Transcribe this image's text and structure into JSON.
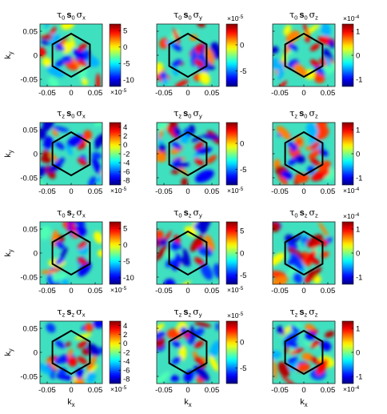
{
  "figure": {
    "rows": 4,
    "cols": 3,
    "xlabel": "k",
    "xlabel_sub": "x",
    "ylabel": "k",
    "ylabel_sub": "y"
  },
  "chart_data": [
    {
      "type": "heatmap",
      "title_parts": [
        "τ",
        "0",
        "s",
        "0",
        "σ",
        "x"
      ],
      "xticks": [
        "-0.05",
        "0",
        "0.05"
      ],
      "yticks": [
        "0.05",
        "0",
        "-0.05"
      ],
      "xlim": [
        -0.065,
        0.065
      ],
      "ylim": [
        -0.065,
        0.065
      ],
      "colorbar": {
        "ticks": [
          5,
          0,
          -5,
          -10
        ],
        "range": [
          -12,
          7
        ],
        "exponent": "×10",
        "exp_power": "-5",
        "exp_position": "bottom"
      },
      "colormap": "jet",
      "hexagon": true
    },
    {
      "type": "heatmap",
      "title_parts": [
        "τ",
        "0",
        "s",
        "0",
        "σ",
        "y"
      ],
      "xticks": [
        "-0.05",
        "0",
        "0.05"
      ],
      "yticks": [
        "0.05",
        "0",
        "-0.05"
      ],
      "xlim": [
        -0.065,
        0.065
      ],
      "ylim": [
        -0.065,
        0.065
      ],
      "colorbar": {
        "ticks": [
          0,
          -5
        ],
        "range": [
          -8,
          4
        ],
        "exponent": "×10",
        "exp_power": "-5",
        "exp_position": "top"
      },
      "colormap": "jet",
      "hexagon": true
    },
    {
      "type": "heatmap",
      "title_parts": [
        "τ",
        "0",
        "s",
        "0",
        "σ",
        "z"
      ],
      "xticks": [
        "-0.05",
        "0",
        "0.05"
      ],
      "yticks": [
        "0.05",
        "0",
        "-0.05"
      ],
      "xlim": [
        -0.065,
        0.065
      ],
      "ylim": [
        -0.065,
        0.065
      ],
      "colorbar": {
        "ticks": [
          1,
          0,
          -1
        ],
        "range": [
          -1.3,
          1.3
        ],
        "exponent": "×10",
        "exp_power": "-4",
        "exp_position": "top"
      },
      "colormap": "jet",
      "hexagon": true
    },
    {
      "type": "heatmap",
      "title_parts": [
        "τ",
        "z",
        "s",
        "0",
        "σ",
        "x"
      ],
      "xticks": [
        "-0.05",
        "0",
        "0.05"
      ],
      "yticks": [
        "0.05",
        "0",
        "-0.05"
      ],
      "xlim": [
        -0.065,
        0.065
      ],
      "ylim": [
        -0.065,
        0.065
      ],
      "colorbar": {
        "ticks": [
          4,
          2,
          0,
          -2,
          -4,
          -6,
          -8
        ],
        "range": [
          -9,
          5
        ],
        "exponent": "×10",
        "exp_power": "-5",
        "exp_position": "bottom"
      },
      "colormap": "jet",
      "hexagon": true
    },
    {
      "type": "heatmap",
      "title_parts": [
        "τ",
        "z",
        "s",
        "0",
        "σ",
        "y"
      ],
      "xticks": [
        "-0.05",
        "0",
        "0.05"
      ],
      "yticks": [
        "0.05",
        "0",
        "-0.05"
      ],
      "xlim": [
        -0.065,
        0.065
      ],
      "ylim": [
        -0.065,
        0.065
      ],
      "colorbar": {
        "ticks": [
          0,
          -5
        ],
        "range": [
          -8,
          4
        ],
        "exponent": "×10",
        "exp_power": "-5",
        "exp_position": "bottom"
      },
      "colormap": "jet",
      "hexagon": true
    },
    {
      "type": "heatmap",
      "title_parts": [
        "τ",
        "z",
        "s",
        "0",
        "σ",
        "z"
      ],
      "xticks": [
        "-0.05",
        "0",
        "0.05"
      ],
      "yticks": [
        "0.05",
        "0",
        "-0.05"
      ],
      "xlim": [
        -0.065,
        0.065
      ],
      "ylim": [
        -0.065,
        0.065
      ],
      "colorbar": {
        "ticks": [
          1,
          0,
          -1
        ],
        "range": [
          -1.3,
          1.3
        ],
        "exponent": "×10",
        "exp_power": "-4",
        "exp_position": "bottom"
      },
      "colormap": "jet",
      "hexagon": true
    },
    {
      "type": "heatmap",
      "title_parts": [
        "τ",
        "0",
        "s",
        "z",
        "σ",
        "x"
      ],
      "xticks": [
        "-0.05",
        "0",
        "0.05"
      ],
      "yticks": [
        "0.05",
        "0",
        "-0.05"
      ],
      "xlim": [
        -0.065,
        0.065
      ],
      "ylim": [
        -0.065,
        0.065
      ],
      "colorbar": {
        "ticks": [
          5,
          0,
          -5,
          -10
        ],
        "range": [
          -12,
          7
        ],
        "exponent": "×10",
        "exp_power": "-5",
        "exp_position": "bottom"
      },
      "colormap": "jet",
      "hexagon": true
    },
    {
      "type": "heatmap",
      "title_parts": [
        "τ",
        "0",
        "s",
        "z",
        "σ",
        "y"
      ],
      "xticks": [
        "-0.05",
        "0",
        "0.05"
      ],
      "yticks": [
        "0.05",
        "0",
        "-0.05"
      ],
      "xlim": [
        -0.065,
        0.065
      ],
      "ylim": [
        -0.065,
        0.065
      ],
      "colorbar": {
        "ticks": [
          5,
          0,
          -5
        ],
        "range": [
          -7,
          7
        ],
        "exponent": "×10",
        "exp_power": "-5",
        "exp_position": "bottom"
      },
      "colormap": "jet",
      "hexagon": true
    },
    {
      "type": "heatmap",
      "title_parts": [
        "τ",
        "0",
        "s",
        "z",
        "σ",
        "z"
      ],
      "xticks": [
        "-0.05",
        "0",
        "0.05"
      ],
      "yticks": [
        "0.05",
        "0",
        "-0.05"
      ],
      "xlim": [
        -0.065,
        0.065
      ],
      "ylim": [
        -0.065,
        0.065
      ],
      "colorbar": {
        "ticks": [
          1,
          0,
          -1
        ],
        "range": [
          -1.3,
          1.3
        ],
        "exponent": "×10",
        "exp_power": "-4",
        "exp_position": "top"
      },
      "colormap": "jet",
      "hexagon": true
    },
    {
      "type": "heatmap",
      "title_parts": [
        "τ",
        "z",
        "s",
        "z",
        "σ",
        "x"
      ],
      "xticks": [
        "-0.05",
        "0",
        "0.05"
      ],
      "yticks": [
        "0.05",
        "0",
        "-0.05"
      ],
      "xlim": [
        -0.065,
        0.065
      ],
      "ylim": [
        -0.065,
        0.065
      ],
      "colorbar": {
        "ticks": [
          4,
          2,
          0,
          -2,
          -4,
          -6,
          -8
        ],
        "range": [
          -9,
          5
        ],
        "exponent": "×10",
        "exp_power": "-5",
        "exp_position": "bottom"
      },
      "colormap": "jet",
      "hexagon": true
    },
    {
      "type": "heatmap",
      "title_parts": [
        "τ",
        "z",
        "s",
        "z",
        "σ",
        "y"
      ],
      "xticks": [
        "-0.05",
        "0",
        "0.05"
      ],
      "yticks": [
        "0.05",
        "0",
        "-0.05"
      ],
      "xlim": [
        -0.065,
        0.065
      ],
      "ylim": [
        -0.065,
        0.065
      ],
      "colorbar": {
        "ticks": [
          0,
          -5
        ],
        "range": [
          -8,
          4
        ],
        "exponent": "×10",
        "exp_power": "-5",
        "exp_position": "top"
      },
      "colormap": "jet",
      "hexagon": true
    },
    {
      "type": "heatmap",
      "title_parts": [
        "τ",
        "z",
        "s",
        "z",
        "σ",
        "z"
      ],
      "xticks": [
        "-0.05",
        "0",
        "0.05"
      ],
      "yticks": [
        "0.05",
        "0",
        "-0.05"
      ],
      "xlim": [
        -0.065,
        0.065
      ],
      "ylim": [
        -0.065,
        0.065
      ],
      "colorbar": {
        "ticks": [
          1,
          0,
          -1
        ],
        "range": [
          -1.3,
          1.3
        ],
        "exponent": "×10",
        "exp_power": "-4",
        "exp_position": "bottom"
      },
      "colormap": "jet",
      "hexagon": true
    }
  ]
}
